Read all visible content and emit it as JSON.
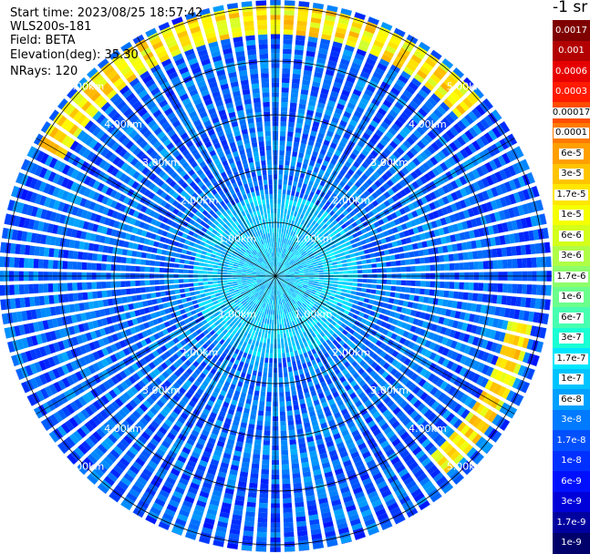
{
  "header": {
    "start_time": "Start time: 2023/08/25 18:57:42",
    "instrument": "WLS200s-181",
    "field": "Field: BETA",
    "elevation": "Elevation(deg): 35.30",
    "nrays": "NRays: 120"
  },
  "colorbar": {
    "unit": "-1 sr",
    "labels": [
      "0.0017",
      "0.001",
      "0.0006",
      "0.0003",
      "0.00017",
      "0.0001",
      "6e-5",
      "3e-5",
      "1.7e-5",
      "1e-5",
      "6e-6",
      "3e-6",
      "1.7e-6",
      "1e-6",
      "6e-7",
      "3e-7",
      "1.7e-7",
      "1e-7",
      "6e-8",
      "3e-8",
      "1.7e-8",
      "1e-8",
      "6e-9",
      "3e-9",
      "1.7e-9",
      "1e-9"
    ],
    "colors": [
      "#7f0000",
      "#b30000",
      "#e60000",
      "#ff1a00",
      "#ff4d00",
      "#ff7a00",
      "#ff9f00",
      "#ffc400",
      "#ffe600",
      "#f5ff00",
      "#d4ff1a",
      "#b0ff47",
      "#8cff6b",
      "#6bff8c",
      "#47ffb0",
      "#1affd4",
      "#00e6ff",
      "#00c4ff",
      "#00a0ff",
      "#007aff",
      "#0050ff",
      "#0030ff",
      "#0010ff",
      "#0000d9",
      "#00009f",
      "#00006b"
    ],
    "dark_text_from_index": 0,
    "light_text_indices": [
      4,
      5,
      6,
      7,
      8,
      9,
      10,
      11,
      12,
      13,
      14,
      15,
      16,
      17,
      18
    ]
  },
  "chart_data": {
    "type": "heatmap",
    "projection": "polar (PPI scan)",
    "field": "BETA",
    "unit": "-1 sr",
    "n_rays": 120,
    "elevation_deg": 35.3,
    "range_rings_km": [
      1.0,
      2.0,
      3.0,
      4.0,
      5.0
    ],
    "ring_labels": [
      "1.00km",
      "2.00km",
      "3.00km",
      "4.00km",
      "5.00km"
    ],
    "radial_lines_every_deg": 30,
    "value_scale": "log",
    "value_range": [
      1e-09,
      0.0017
    ],
    "features": [
      {
        "description": "weak returns near center",
        "range_km": [
          0,
          1.5
        ],
        "value_approx": "1e-7 to 3e-7"
      },
      {
        "description": "background returns",
        "range_km": [
          1.5,
          5.2
        ],
        "value_approx": "3e-8 to 1.7e-7"
      },
      {
        "description": "enhanced layer arc (NW to N)",
        "azimuth_deg": [
          300,
          50
        ],
        "range_km": [
          4.5,
          5.0
        ],
        "value_approx": "6e-6 to 3e-5"
      },
      {
        "description": "enhanced layer arc (SE)",
        "azimuth_deg": [
          100,
          140
        ],
        "range_km": [
          4.4,
          4.9
        ],
        "value_approx": "6e-6 to 3e-5"
      }
    ]
  }
}
